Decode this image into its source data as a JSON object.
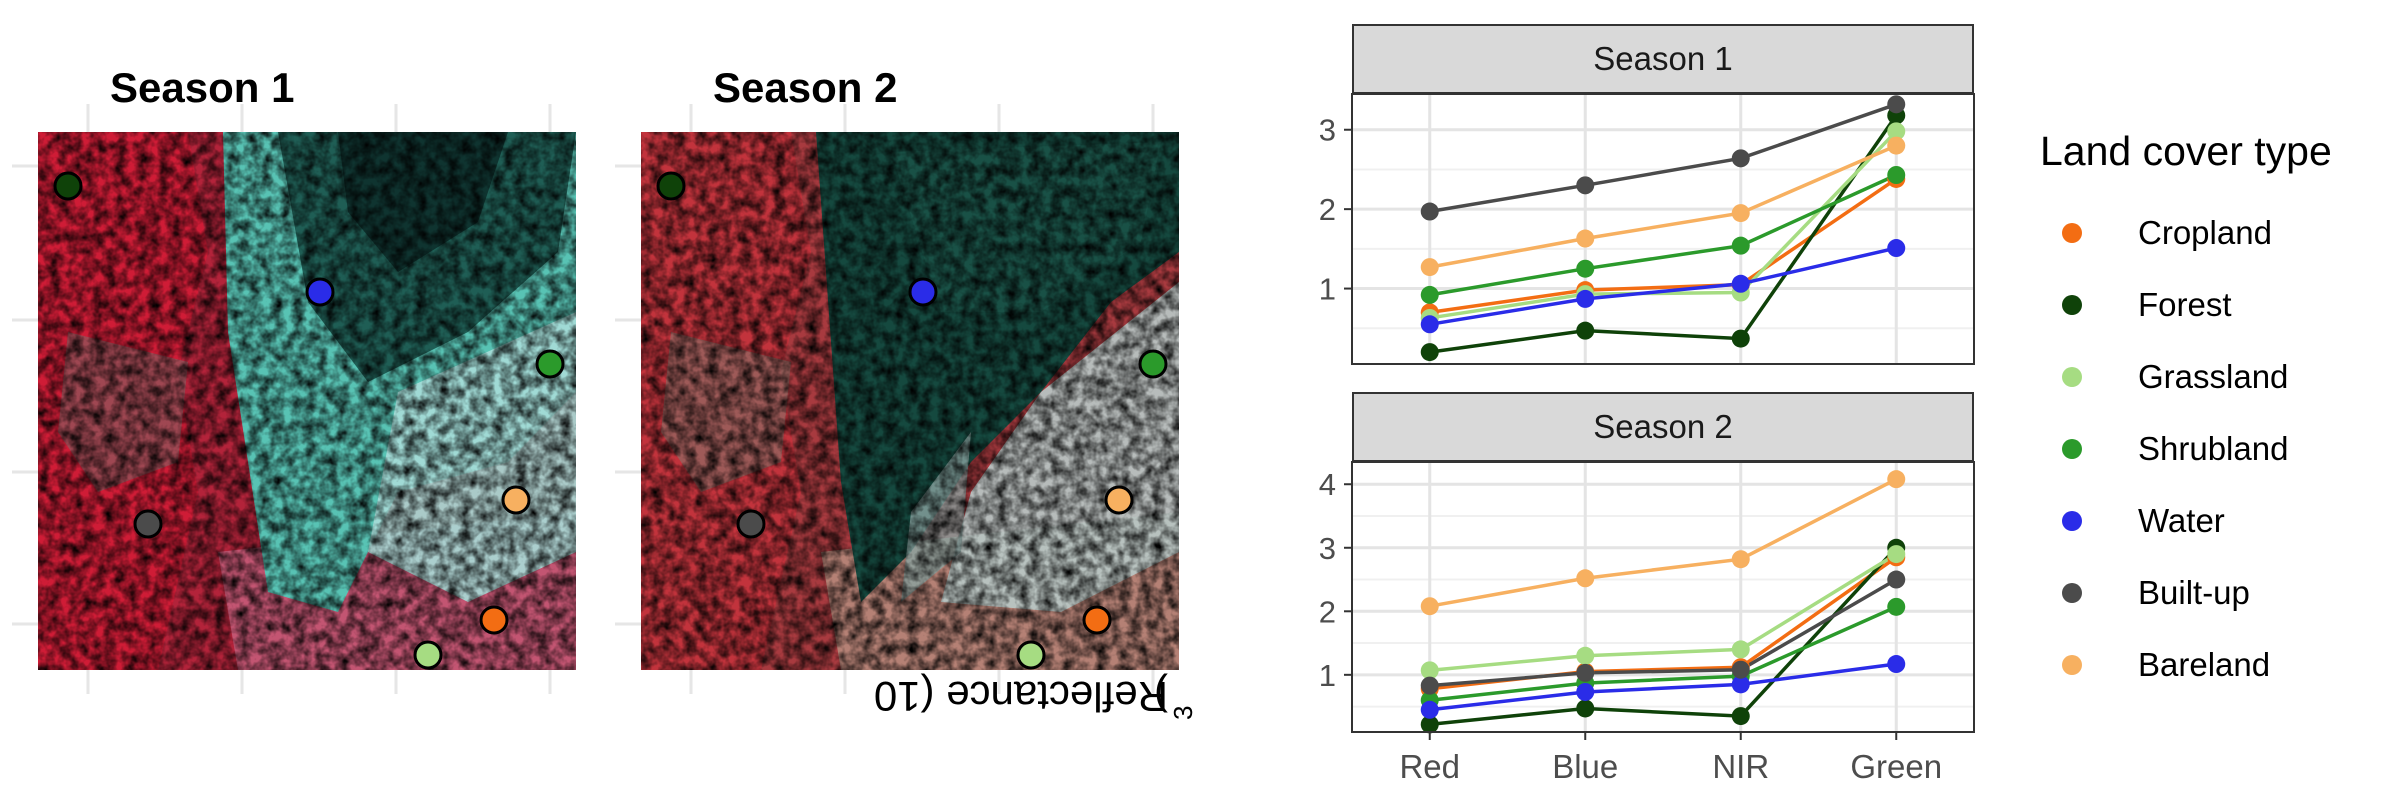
{
  "maps": {
    "panels": [
      {
        "title": "Season 1",
        "style": "season1"
      },
      {
        "title": "Season 2",
        "style": "season2"
      }
    ],
    "points": [
      {
        "class": "Forest"
      },
      {
        "class": "Water"
      },
      {
        "class": "Shrubland"
      },
      {
        "class": "Bareland"
      },
      {
        "class": "Built-up"
      },
      {
        "class": "Cropland"
      },
      {
        "class": "Grassland"
      }
    ]
  },
  "chart_data": {
    "type": "line",
    "categories": [
      "Red",
      "Blue",
      "NIR",
      "Green"
    ],
    "ylabel": "Reflectance (10",
    "ylabel_sup": "3",
    "ylabel_close": ")",
    "legend": {
      "title": "Land cover type",
      "position": "right"
    },
    "grid": true,
    "colors": {
      "Cropland": "#f36d13",
      "Forest": "#0f4209",
      "Grassland": "#a6dc82",
      "Shrubland": "#2b9a2b",
      "Water": "#2a2ce8",
      "Built-up": "#4b4b4b",
      "Bareland": "#f7b060"
    },
    "facets": [
      {
        "strip": "Season 1",
        "ylim": [
          0.05,
          3.45
        ],
        "yticks": [
          1,
          2,
          3
        ],
        "series": [
          {
            "name": "Cropland",
            "values": [
              0.7,
              0.98,
              1.05,
              2.38
            ]
          },
          {
            "name": "Forest",
            "values": [
              0.2,
              0.47,
              0.37,
              3.18
            ]
          },
          {
            "name": "Grassland",
            "values": [
              0.63,
              0.93,
              0.95,
              2.98
            ]
          },
          {
            "name": "Shrubland",
            "values": [
              0.92,
              1.25,
              1.54,
              2.43
            ]
          },
          {
            "name": "Water",
            "values": [
              0.55,
              0.87,
              1.06,
              1.51
            ]
          },
          {
            "name": "Built-up",
            "values": [
              1.97,
              2.3,
              2.64,
              3.32
            ]
          },
          {
            "name": "Bareland",
            "values": [
              1.27,
              1.63,
              1.95,
              2.8
            ]
          }
        ]
      },
      {
        "strip": "Season 2",
        "ylim": [
          0.1,
          4.35
        ],
        "yticks": [
          1,
          2,
          3,
          4
        ],
        "series": [
          {
            "name": "Cropland",
            "values": [
              0.78,
              1.05,
              1.12,
              2.85
            ]
          },
          {
            "name": "Forest",
            "values": [
              0.22,
              0.47,
              0.35,
              3.0
            ]
          },
          {
            "name": "Grassland",
            "values": [
              1.07,
              1.3,
              1.4,
              2.9
            ]
          },
          {
            "name": "Shrubland",
            "values": [
              0.6,
              0.87,
              0.98,
              2.07
            ]
          },
          {
            "name": "Water",
            "values": [
              0.45,
              0.73,
              0.85,
              1.17
            ]
          },
          {
            "name": "Built-up",
            "values": [
              0.83,
              1.03,
              1.08,
              2.5
            ]
          },
          {
            "name": "Bareland",
            "values": [
              2.08,
              2.52,
              2.82,
              4.08
            ]
          }
        ]
      }
    ]
  }
}
